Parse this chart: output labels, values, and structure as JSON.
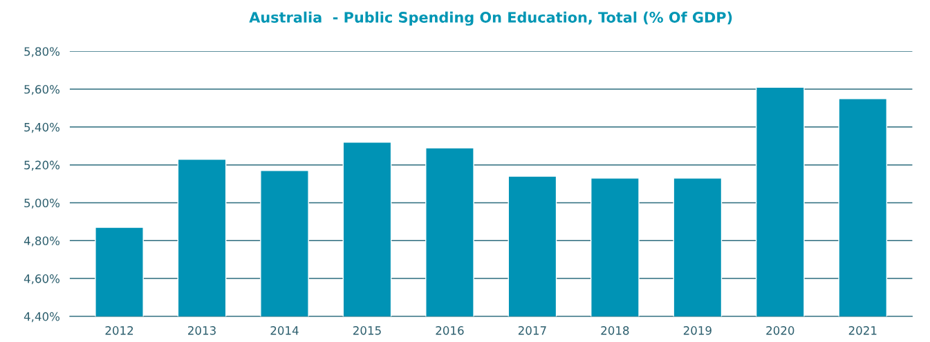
{
  "chart_data": {
    "type": "bar",
    "title": "Australia  - Public Spending On Education, Total (% Of GDP)",
    "categories": [
      "2012",
      "2013",
      "2014",
      "2015",
      "2016",
      "2017",
      "2018",
      "2019",
      "2020",
      "2021"
    ],
    "values": [
      4.87,
      5.23,
      5.17,
      5.32,
      5.29,
      5.14,
      5.13,
      5.13,
      5.61,
      5.55
    ],
    "color": "#0093b5",
    "ylim": [
      4.4,
      5.8
    ],
    "yticks": [
      {
        "value": 4.4,
        "label": "4,40%"
      },
      {
        "value": 4.6,
        "label": "4,60%"
      },
      {
        "value": 4.8,
        "label": "4,80%"
      },
      {
        "value": 5.0,
        "label": "5,00%"
      },
      {
        "value": 5.2,
        "label": "5,20%"
      },
      {
        "value": 5.4,
        "label": "5,40%"
      },
      {
        "value": 5.6,
        "label": "5,60%"
      },
      {
        "value": 5.8,
        "label": "5,80%"
      }
    ],
    "grid": "y"
  }
}
